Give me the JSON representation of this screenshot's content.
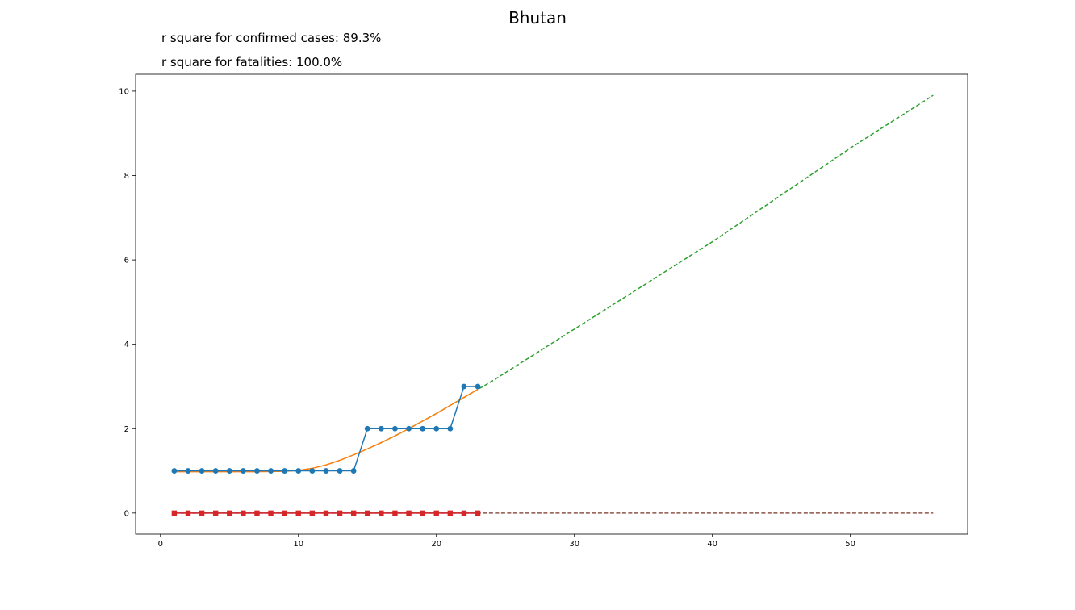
{
  "chart_data": {
    "type": "line",
    "title": "Bhutan",
    "annotations": [
      "r square for confirmed cases: 89.3%",
      "r square for fatalities: 100.0%"
    ],
    "xlabel": "",
    "ylabel": "",
    "xlim": [
      -1.8,
      58.5
    ],
    "ylim": [
      -0.5,
      10.4
    ],
    "xticks": [
      0,
      10,
      20,
      30,
      40,
      50
    ],
    "yticks": [
      0,
      2,
      4,
      6,
      8,
      10
    ],
    "grid": false,
    "colors": {
      "confirmed": "#1f77b4",
      "confirmed_fit": "#ff7f0e",
      "confirmed_projection": "#2ca02c",
      "fatalities": "#d62728",
      "fatalities_fit": "#9467bd",
      "fatalities_projection": "#8c564b"
    },
    "series": [
      {
        "key": "confirmed",
        "style": "line-markers",
        "marker": "circle",
        "x": [
          1,
          2,
          3,
          4,
          5,
          6,
          7,
          8,
          9,
          10,
          11,
          12,
          13,
          14,
          15,
          16,
          17,
          18,
          19,
          20,
          21,
          22,
          23
        ],
        "y": [
          1,
          1,
          1,
          1,
          1,
          1,
          1,
          1,
          1,
          1,
          1,
          1,
          1,
          1,
          2,
          2,
          2,
          2,
          2,
          2,
          2,
          3,
          3
        ]
      },
      {
        "key": "confirmed_fit",
        "style": "line",
        "x": [
          1,
          3,
          5,
          7,
          9,
          10,
          11,
          12,
          13,
          14,
          15,
          16,
          17,
          18,
          19,
          20,
          21,
          22,
          23
        ],
        "y": [
          0.98,
          0.98,
          0.98,
          0.98,
          0.99,
          1.01,
          1.06,
          1.14,
          1.25,
          1.38,
          1.52,
          1.67,
          1.83,
          2.0,
          2.18,
          2.36,
          2.55,
          2.74,
          2.93
        ]
      },
      {
        "key": "confirmed_projection",
        "style": "dashed",
        "x": [
          15,
          16,
          17,
          18,
          19,
          20,
          21,
          22,
          23,
          24,
          30,
          40,
          50,
          56
        ],
        "y": [
          1.52,
          1.67,
          1.83,
          2.0,
          2.18,
          2.36,
          2.55,
          2.74,
          2.93,
          3.12,
          4.36,
          6.43,
          8.65,
          9.9
        ]
      },
      {
        "key": "fatalities",
        "style": "line-markers",
        "marker": "square",
        "x": [
          1,
          2,
          3,
          4,
          5,
          6,
          7,
          8,
          9,
          10,
          11,
          12,
          13,
          14,
          15,
          16,
          17,
          18,
          19,
          20,
          21,
          22,
          23
        ],
        "y": [
          0,
          0,
          0,
          0,
          0,
          0,
          0,
          0,
          0,
          0,
          0,
          0,
          0,
          0,
          0,
          0,
          0,
          0,
          0,
          0,
          0,
          0,
          0
        ]
      },
      {
        "key": "fatalities_fit",
        "style": "line",
        "x": [
          1,
          23
        ],
        "y": [
          0,
          0
        ]
      },
      {
        "key": "fatalities_projection",
        "style": "dashed",
        "x": [
          1,
          56
        ],
        "y": [
          0,
          0
        ]
      }
    ]
  }
}
